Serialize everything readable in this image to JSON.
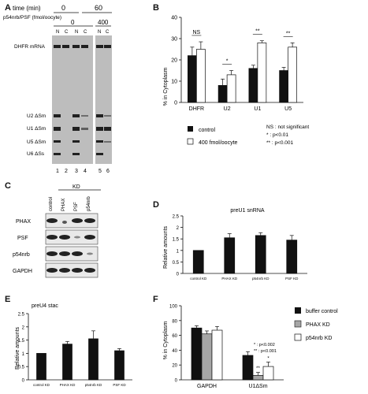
{
  "panel_a": {
    "label": "A",
    "time_label": "time (min)",
    "time_0": "0",
    "time_60": "60",
    "treatment_label": "p54nrb/PSF (fmol/oocyte)",
    "dose_0": "0",
    "dose_400": "400",
    "lane_headers": [
      "N",
      "C",
      "N",
      "C",
      "N",
      "C"
    ],
    "rna_labels": [
      "DHFR mRNA",
      "U2 ΔSm",
      "U1 ΔSm",
      "U5 ΔSm",
      "U6 ΔSs"
    ],
    "lane_numbers": [
      "1",
      "2",
      "3",
      "4",
      "5",
      "6"
    ]
  },
  "panel_b": {
    "label": "B",
    "ylabel": "% in Cytoplasm",
    "sig": [
      "NS",
      "*",
      "**",
      "**"
    ],
    "legend": [
      "control",
      "400 fmol/oocyte"
    ],
    "notes": [
      "NS : not significant",
      "* : p<0.01",
      "** : p<0.001"
    ]
  },
  "panel_c": {
    "label": "C",
    "kd_label": "KD",
    "columns": [
      "control",
      "PHAX",
      "PSF",
      "p54nrb"
    ],
    "rows": [
      "PHAX",
      "PSF",
      "p54nrb",
      "GAPDH"
    ]
  },
  "panel_d": {
    "label": "D",
    "title": "preU1 snRNA",
    "ylabel": "Relative amounts"
  },
  "panel_e": {
    "label": "E",
    "title": "preU4 stac",
    "ylabel": "Relative amounts"
  },
  "panel_f": {
    "label": "F",
    "ylabel": "% in Cytoplasm",
    "legend": [
      "buffer control",
      "PHAX KD",
      "p54nrb KD"
    ],
    "notes": [
      "* : p<0.002",
      "** : p<0.001"
    ],
    "sig": [
      "**",
      "*"
    ]
  },
  "chart_data": [
    {
      "id": "B",
      "type": "bar",
      "categories": [
        "DHFR",
        "U2",
        "U1",
        "U5"
      ],
      "series": [
        {
          "name": "control",
          "values": [
            22,
            8,
            16,
            15
          ],
          "errors": [
            4,
            3,
            1.5,
            1.5
          ]
        },
        {
          "name": "400 fmol/oocyte",
          "values": [
            25,
            13,
            28,
            26
          ],
          "errors": [
            3.5,
            2,
            1,
            2
          ]
        }
      ],
      "ylabel": "% in Cytoplasm",
      "ylim": [
        0,
        40
      ],
      "yticks": [
        0,
        10,
        20,
        30,
        40
      ]
    },
    {
      "id": "D",
      "type": "bar",
      "title": "preU1 snRNA",
      "categories": [
        "control KD",
        "PHAX KD",
        "p54nrb KD",
        "PSF KD"
      ],
      "values": [
        1,
        1.55,
        1.65,
        1.45
      ],
      "errors": [
        0,
        0.18,
        0.12,
        0.2
      ],
      "ylabel": "Relative amounts",
      "ylim": [
        0,
        2.5
      ],
      "yticks": [
        0,
        0.5,
        1,
        1.5,
        2,
        2.5
      ]
    },
    {
      "id": "E",
      "type": "bar",
      "title": "preU4 stac",
      "categories": [
        "control KD",
        "PHAX KD",
        "p54nrb KD",
        "PSF KD"
      ],
      "values": [
        1,
        1.35,
        1.55,
        1.1
      ],
      "errors": [
        0,
        0.1,
        0.3,
        0.08
      ],
      "ylabel": "Relative amounts",
      "ylim": [
        0,
        2.5
      ],
      "yticks": [
        0,
        0.5,
        1,
        1.5,
        2,
        2.5
      ]
    },
    {
      "id": "F",
      "type": "bar",
      "categories": [
        "GAPDH",
        "U1ΔSm"
      ],
      "series": [
        {
          "name": "buffer control",
          "values": [
            70,
            33
          ],
          "errors": [
            3,
            5
          ]
        },
        {
          "name": "PHAX KD",
          "values": [
            62,
            6
          ],
          "errors": [
            4,
            4
          ]
        },
        {
          "name": "p54nrb KD",
          "values": [
            67,
            18
          ],
          "errors": [
            5,
            6
          ]
        }
      ],
      "ylabel": "% in Cytoplasm",
      "ylim": [
        0,
        100
      ],
      "yticks": [
        0,
        20,
        40,
        60,
        80,
        100
      ]
    }
  ]
}
